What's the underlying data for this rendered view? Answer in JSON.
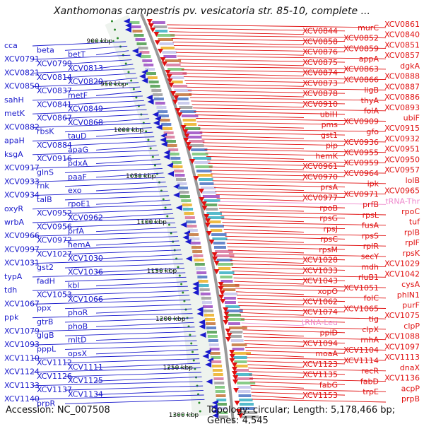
{
  "title": "Xanthomonas campestris pv. vesicatoria str. 85-10, complete ...",
  "footer": {
    "accession": "Accession: NC_007508",
    "summary": "Topology: circular; Length: 5,178,466 bp; Genes: 4,545"
  },
  "colors": {
    "left_labels": "#1a1acc",
    "right_labels": "#e01010",
    "trna_labels": "#ee88cc",
    "backbone": "#999999",
    "ticks": "#2a8a2a"
  },
  "ticks": [
    "900 kbp",
    "950 kbp",
    "1000 kbp",
    "1050 kbp",
    "1100 kbp",
    "1150 kbp",
    "1200 kbp",
    "1250 kbp",
    "1300 kbp"
  ],
  "left_genes": [
    "cca",
    "beta",
    "betT",
    "XCV0791",
    "XCV0799",
    "XCV0813",
    "XCV0821",
    "XCV0814",
    "XCV0820",
    "XCV0850",
    "XCV0837",
    "metF",
    "sahH",
    "XCV0841",
    "XCV0849",
    "metK",
    "XCV0867",
    "XCV0868",
    "XCV0882",
    "rbsK",
    "tauD",
    "apaH",
    "XCV0884",
    "apaG",
    "ksgA",
    "XCV0916",
    "pdxA",
    "XCV0917",
    "glnS",
    "paaF",
    "XCV0933",
    "rnk",
    "exo",
    "XCV0934",
    "talB",
    "rpoE1",
    "oxyR",
    "XCV0952",
    "XCV0962",
    "wrbA",
    "XCV0956",
    "prfA",
    "XCV0966",
    "XCV0972",
    "hemA",
    "XCV0997",
    "XCV1027",
    "XCV1030",
    "XCV1031",
    "gst2",
    "XCV1036",
    "typA",
    "fadH",
    "kbl",
    "tdh",
    "XCV1053",
    "XCV1066",
    "XCV1067",
    "ppx",
    "phoR",
    "ppk",
    "gtrB",
    "phoB",
    "XCV1079",
    "glgB",
    "mltD",
    "XCV1093",
    "pppL",
    "opsX",
    "XCV1110",
    "XCV1112",
    "XCV1111",
    "XCV1124",
    "XCV1126",
    "XCV1125",
    "XCV1133",
    "XCV1137",
    "XCV1134",
    "XCV1140",
    "prpR"
  ],
  "right_genes": [
    "XCV0861",
    "murC",
    "XCV0844",
    "XCV0840",
    "XCV0852",
    "XCV0858",
    "XCV0851",
    "XCV0859",
    "XCV0876",
    "XCV0857",
    "appA",
    "XCV0875",
    "dgkA",
    "XCV0863",
    "XCV0874",
    "XCV0888",
    "XCV0866",
    "XCV0873",
    "XCV0887",
    "ligB",
    "XCV0878",
    "XCV0886",
    "thyA",
    "XCV0910",
    "XCV0893",
    "folA",
    "ubiH",
    "ubiF",
    "XCV0909",
    "pms",
    "XCV0915",
    "gfo",
    "gst1",
    "XCV0932",
    "XCV0936",
    "pip",
    "XCV0951",
    "XCV0955",
    "hemK",
    "XCV0950",
    "XCV0959",
    "XCV0961",
    "XCV0957",
    "XCV0964",
    "XCV0970",
    "lolB",
    "ipk",
    "prsA",
    "XCV0965",
    "XCV0971",
    "XCV0977",
    "tRNA-Thr",
    "prfB",
    "rpoB",
    "rpoC",
    "rpsL",
    "rpsG",
    "tuf",
    "fusA",
    "rpsJ",
    "rplB",
    "rpsS",
    "rpsC",
    "rplF",
    "rplR",
    "rpsM",
    "rpsK",
    "secY",
    "XCV1028",
    "XCV1029",
    "mdh",
    "XCV1033",
    "XCV1042",
    "rluB1",
    "XCV1043",
    "cysA",
    "XCV1051",
    "xopO",
    "phlN1",
    "folC",
    "XCV1062",
    "purF",
    "XCV1065",
    "XCV1074",
    "XCV1075",
    "tig",
    "tRNA-Leu",
    "clpP",
    "clpX",
    "ppiD",
    "XCV1088",
    "rnhA",
    "XCV1094",
    "XCV1097",
    "XCV1104",
    "moaA",
    "XCV1113",
    "XCV1114",
    "XCV1123",
    "dnaX",
    "recR",
    "XCV1135",
    "XCV1136",
    "fabD",
    "fabG",
    "acpP",
    "trpE",
    "XCV1153",
    "prpB"
  ],
  "trna_genes": [
    "tRNA-Thr",
    "tRNA-Trp",
    "tRNA-Leu"
  ]
}
